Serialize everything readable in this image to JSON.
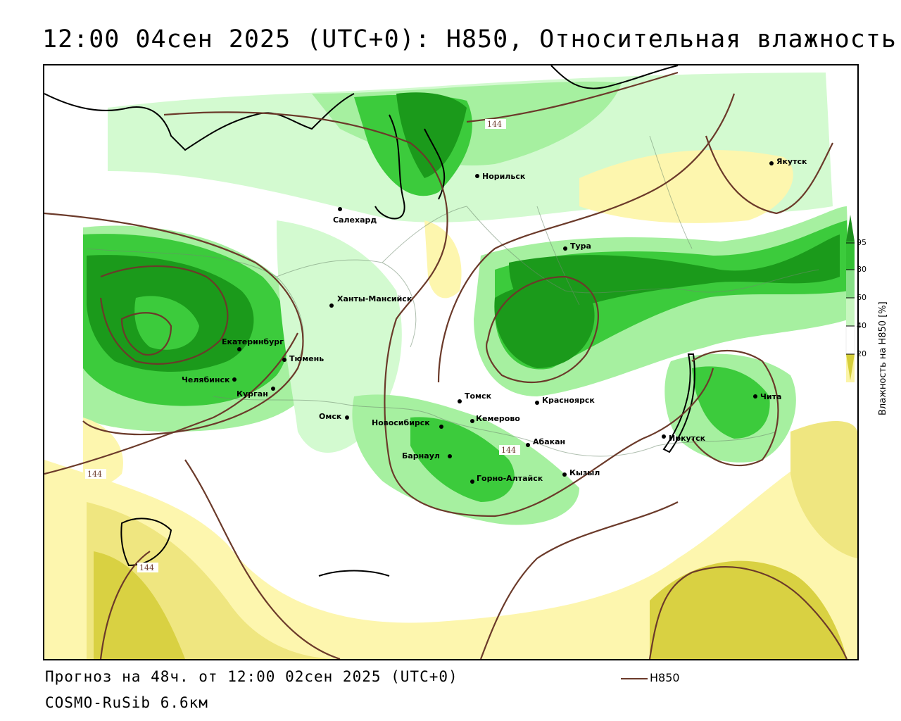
{
  "title": "12:00 04сен 2025 (UTC+0): H850, Относительная влажность",
  "forecast_text": "Прогноз на 48ч. от 12:00 02сен 2025 (UTC+0)",
  "model_text": "COSMO-RuSib 6.6км",
  "legend": {
    "line_label": "H850",
    "line_color": "#6b3a2a"
  },
  "colorbar": {
    "title": "Влажность на H850 [%]",
    "ticks": [
      "95",
      "80",
      "60",
      "40",
      "20"
    ],
    "colors": [
      "#1f8f1f",
      "#33c033",
      "#86e086",
      "#c8f7c0",
      "#ffffff",
      "#fbf4a8",
      "#e6e07a",
      "#d6cf3a"
    ]
  },
  "palette": {
    "dark_green": "#1b9a1b",
    "green": "#3ccb3c",
    "light_green": "#a6f0a0",
    "pale_green": "#d3fad0",
    "pale_yellow": "#fdf6ae",
    "yellow": "#efe680",
    "olive": "#d9d142",
    "boundary": "#000000",
    "contour": "#6b3a2a"
  },
  "isoline_labels": [
    "144",
    "144",
    "144",
    "144"
  ],
  "cities": [
    {
      "name": "Якутск"
    },
    {
      "name": "Норильск"
    },
    {
      "name": "Салехард"
    },
    {
      "name": "Тура"
    },
    {
      "name": "Ханты-Мансийск"
    },
    {
      "name": "Екатеринбург"
    },
    {
      "name": "Тюмень"
    },
    {
      "name": "Челябинск"
    },
    {
      "name": "Курган"
    },
    {
      "name": "Омск"
    },
    {
      "name": "Новосибирск"
    },
    {
      "name": "Томск"
    },
    {
      "name": "Кемерово"
    },
    {
      "name": "Красноярск"
    },
    {
      "name": "Абакан"
    },
    {
      "name": "Барнаул"
    },
    {
      "name": "Горно-Алтайск"
    },
    {
      "name": "Кызыл"
    },
    {
      "name": "Иркутск"
    },
    {
      "name": "Чита"
    }
  ]
}
